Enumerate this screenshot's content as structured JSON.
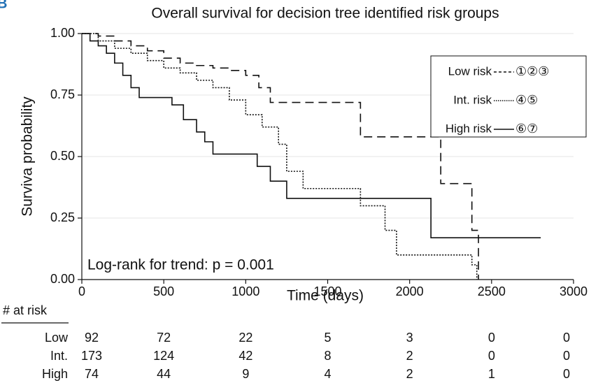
{
  "chart_data": {
    "type": "step",
    "panel_label": "B",
    "title": "Overall survival for decision tree identified risk groups",
    "x_label": "Time (days)",
    "y_label": "Surviva probability",
    "annotation": "Log-rank for trend: p = 0.001",
    "xlim": [
      0,
      3000
    ],
    "xticks": [
      0,
      500,
      1000,
      1500,
      2000,
      2500,
      3000
    ],
    "ylim": [
      0,
      1
    ],
    "yticks": [
      {
        "value": 0,
        "label": "0.00"
      },
      {
        "value": 0.25,
        "label": "0.25"
      },
      {
        "value": 0.5,
        "label": "0.50"
      },
      {
        "value": 0.75,
        "label": "0.75"
      },
      {
        "value": 1,
        "label": "1.00"
      }
    ],
    "grid": true,
    "legend": "upper right",
    "series": [
      {
        "name": "Low risk",
        "groups": "①②③",
        "color": "#111111",
        "dash": "dashed",
        "x": [
          0,
          100,
          200,
          300,
          400,
          500,
          600,
          700,
          800,
          900,
          1000,
          1080,
          1150,
          1700,
          2190,
          2380,
          2420
        ],
        "values": [
          1,
          0.99,
          0.97,
          0.95,
          0.93,
          0.9,
          0.88,
          0.87,
          0.86,
          0.85,
          0.83,
          0.78,
          0.72,
          0.58,
          0.39,
          0.2,
          0
        ]
      },
      {
        "name": "Int. risk",
        "groups": "④⑤",
        "color": "#111111",
        "dash": "dotted",
        "x": [
          0,
          100,
          200,
          300,
          400,
          500,
          600,
          700,
          800,
          900,
          1000,
          1100,
          1200,
          1250,
          1350,
          1700,
          1850,
          1920,
          2380,
          2410
        ],
        "values": [
          1,
          0.97,
          0.94,
          0.92,
          0.89,
          0.86,
          0.84,
          0.81,
          0.78,
          0.73,
          0.67,
          0.62,
          0.55,
          0.44,
          0.37,
          0.3,
          0.2,
          0.1,
          0.06,
          0
        ]
      },
      {
        "name": "High risk",
        "groups": "⑥⑦",
        "color": "#111111",
        "dash": "solid",
        "x": [
          0,
          50,
          100,
          150,
          200,
          250,
          300,
          350,
          550,
          620,
          700,
          750,
          800,
          1070,
          1150,
          1250,
          2130,
          2800
        ],
        "values": [
          1,
          0.97,
          0.95,
          0.92,
          0.88,
          0.83,
          0.78,
          0.74,
          0.71,
          0.65,
          0.6,
          0.56,
          0.51,
          0.46,
          0.4,
          0.33,
          0.17,
          0.17
        ]
      }
    ],
    "risk_table": {
      "title": "# at risk",
      "rows": [
        {
          "name": "Low",
          "values": [
            92,
            72,
            22,
            5,
            3,
            0,
            0
          ]
        },
        {
          "name": "Int.",
          "values": [
            173,
            124,
            42,
            8,
            2,
            0,
            0
          ]
        },
        {
          "name": "High",
          "values": [
            74,
            44,
            9,
            4,
            2,
            1,
            0
          ]
        }
      ]
    }
  }
}
